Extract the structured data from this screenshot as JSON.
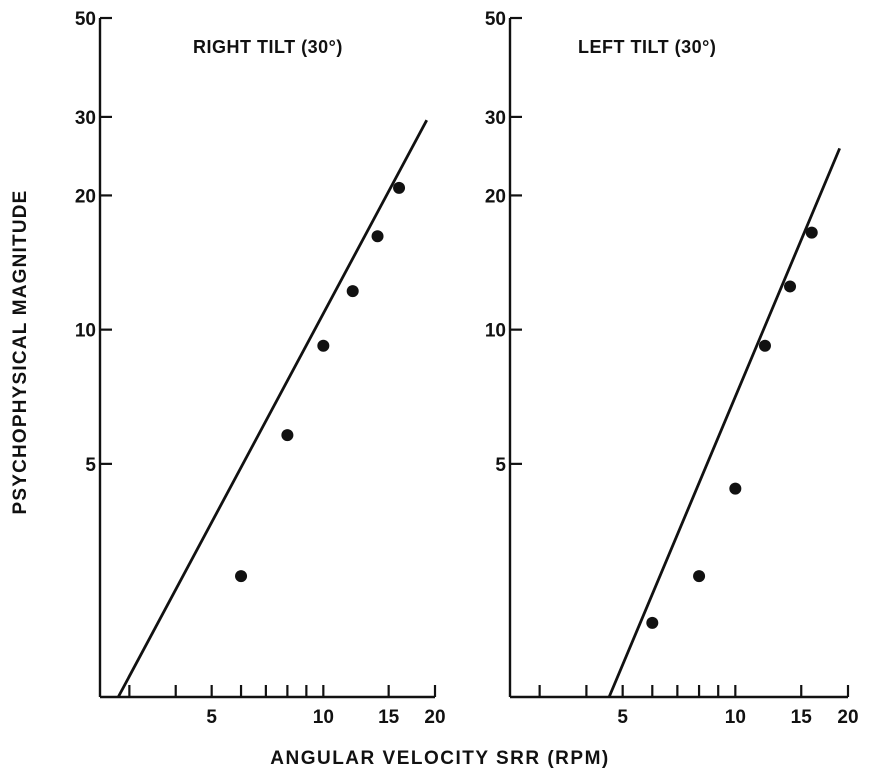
{
  "figure": {
    "xlabel": "ANGULAR  VELOCITY  SRR  (RPM)",
    "ylabel": "PSYCHOPHYSICAL  MAGNITUDE"
  },
  "chart_data": [
    {
      "type": "scatter",
      "title": "RIGHT  TILT (30°)",
      "xlabel": "ANGULAR VELOCITY SRR (RPM)",
      "ylabel": "PSYCHOPHYSICAL MAGNITUDE",
      "x_scale": "log",
      "y_scale": "log",
      "xlim": [
        2.5,
        20
      ],
      "ylim": [
        1.5,
        50
      ],
      "x_ticks": [
        3,
        4,
        5,
        6,
        7,
        8,
        9,
        10,
        15,
        20
      ],
      "x_tick_labels": [
        "5",
        "10",
        "15",
        "20"
      ],
      "y_tick_labels": [
        "5",
        "10",
        "20",
        "30",
        "50"
      ],
      "points": {
        "x": [
          6,
          8,
          10,
          12,
          14,
          16
        ],
        "y": [
          2.8,
          5.8,
          9.2,
          12.2,
          16.2,
          20.8
        ]
      },
      "fit_line": {
        "x": [
          2.8,
          19.0
        ],
        "y": [
          1.5,
          29.5
        ]
      }
    },
    {
      "type": "scatter",
      "title": "LEFT  TILT (30°)",
      "xlabel": "ANGULAR VELOCITY SRR (RPM)",
      "ylabel": "PSYCHOPHYSICAL MAGNITUDE",
      "x_scale": "log",
      "y_scale": "log",
      "xlim": [
        2.5,
        20
      ],
      "ylim": [
        1.5,
        50
      ],
      "x_ticks": [
        3,
        4,
        5,
        6,
        7,
        8,
        9,
        10,
        15,
        20
      ],
      "x_tick_labels": [
        "5",
        "10",
        "15",
        "20"
      ],
      "y_tick_labels": [
        "5",
        "10",
        "20",
        "30",
        "50"
      ],
      "points": {
        "x": [
          6,
          8,
          10,
          12,
          14,
          16
        ],
        "y": [
          2.2,
          2.8,
          4.4,
          9.2,
          12.5,
          16.5
        ]
      },
      "fit_line": {
        "x": [
          4.6,
          19.0
        ],
        "y": [
          1.5,
          25.5
        ]
      }
    }
  ]
}
